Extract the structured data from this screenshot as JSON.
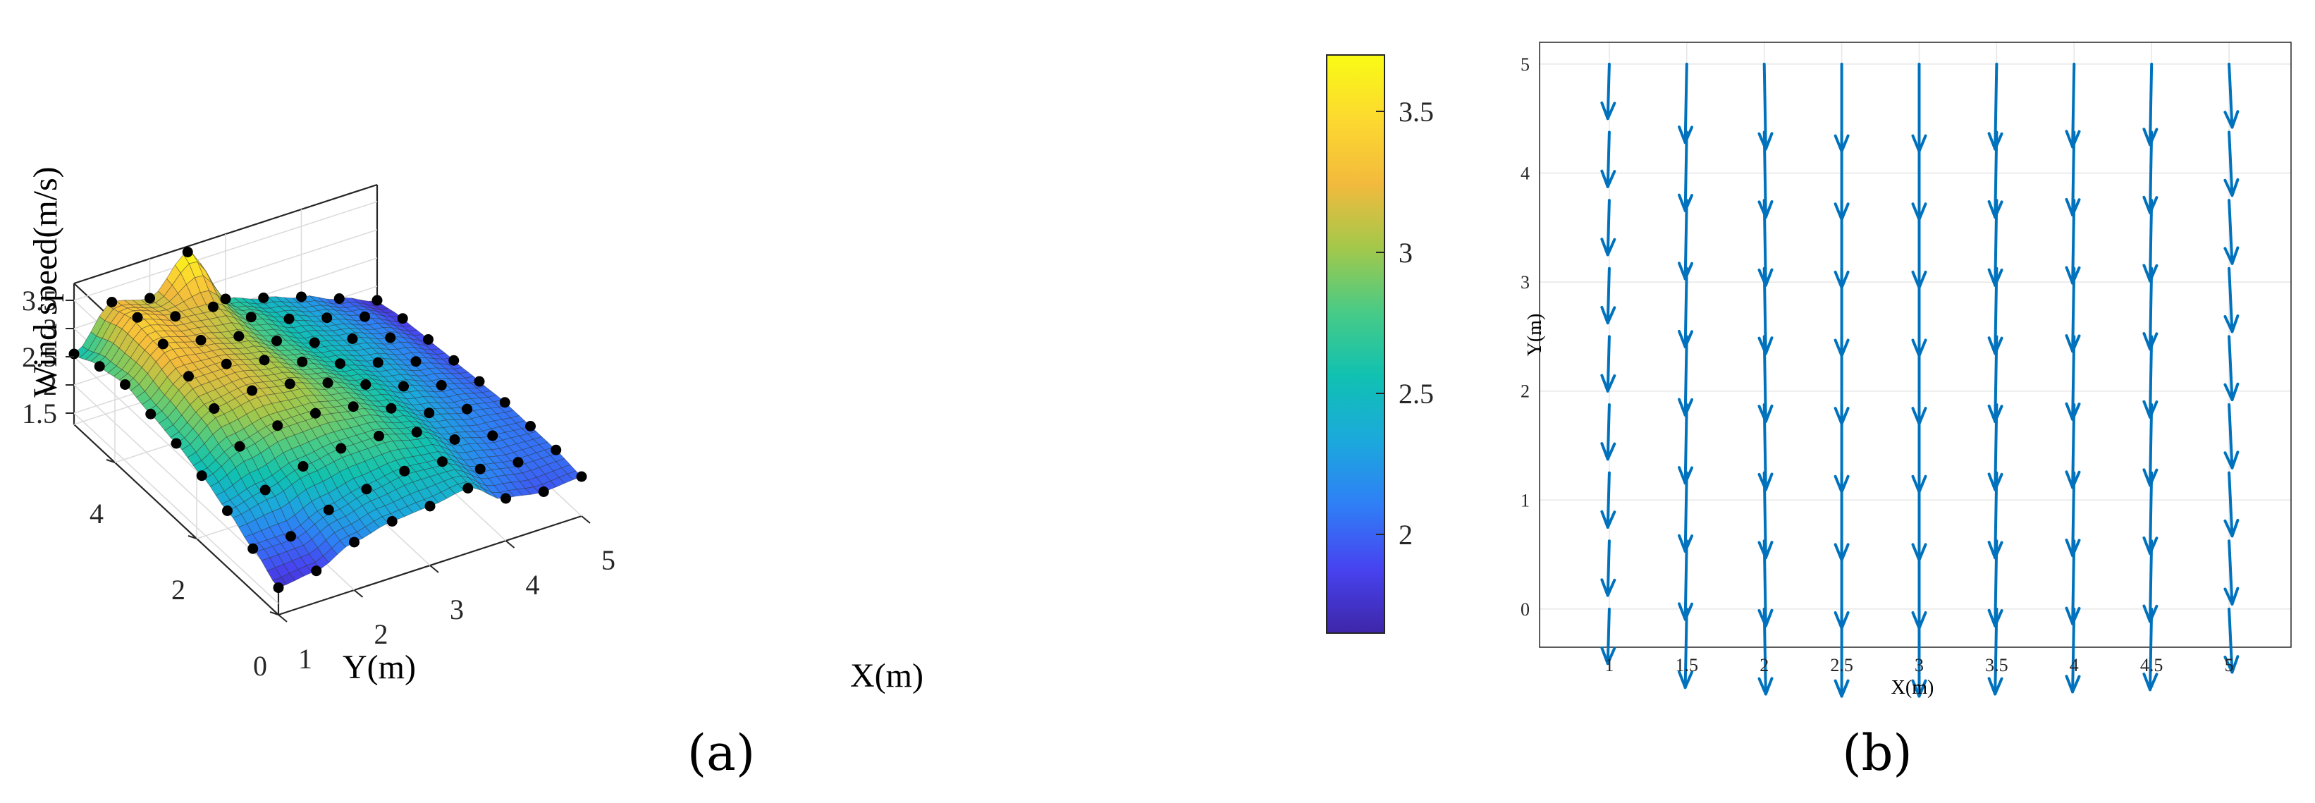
{
  "panels": {
    "a_label": "(a)",
    "b_label": "(b)"
  },
  "chart_data": [
    {
      "type": "surface3d",
      "zlabel": "Wind speed(m/s)",
      "xlabel": "X(m)",
      "ylabel": "Y(m)",
      "x_ticks": [
        "1",
        "2",
        "3",
        "4",
        "5"
      ],
      "y_ticks": [
        "0",
        "2",
        "4"
      ],
      "z_ticks": [
        "1.5",
        "2",
        "2.5",
        "3",
        "3.5"
      ],
      "xlim": [
        1,
        5
      ],
      "ylim": [
        0,
        5
      ],
      "zlim": [
        1.3,
        3.8
      ],
      "colorbar_ticks": [
        "2",
        "2.5",
        "3",
        "3.5"
      ],
      "colorbar_range": [
        1.65,
        3.7
      ],
      "colormap": [
        "#3e26a8",
        "#4743f0",
        "#2f7ff6",
        "#1ba9dc",
        "#10c1b1",
        "#48cb86",
        "#a3c84a",
        "#f3ba3d",
        "#fcd92f",
        "#f9fb15"
      ],
      "grid": true,
      "x": [
        1,
        1.5,
        2,
        2.5,
        3,
        3.5,
        4,
        4.5,
        5
      ],
      "y": [
        0,
        0.625,
        1.25,
        1.875,
        2.5,
        3.125,
        3.75,
        4.375,
        5
      ],
      "z": [
        [
          1.78,
          1.86,
          2.15,
          2.3,
          2.35,
          2.45,
          2.05,
          1.95,
          2.0
        ],
        [
          2.05,
          2.05,
          2.3,
          2.45,
          2.55,
          2.5,
          2.15,
          2.05,
          2.05
        ],
        [
          2.3,
          2.45,
          2.65,
          2.75,
          2.75,
          2.6,
          2.25,
          2.1,
          2.05
        ],
        [
          2.5,
          2.8,
          2.95,
          2.95,
          2.85,
          2.6,
          2.3,
          2.15,
          2.05
        ],
        [
          2.65,
          3.05,
          3.15,
          3.05,
          2.85,
          2.6,
          2.35,
          2.15,
          2.0
        ],
        [
          2.75,
          3.2,
          3.2,
          3.05,
          2.8,
          2.55,
          2.35,
          2.15,
          1.95
        ],
        [
          2.85,
          3.35,
          3.2,
          3.05,
          2.75,
          2.5,
          2.35,
          2.15,
          1.9
        ],
        [
          2.75,
          3.4,
          3.2,
          3.15,
          2.75,
          2.5,
          2.3,
          2.1,
          1.85
        ],
        [
          2.55,
          3.25,
          3.1,
          3.7,
          2.65,
          2.45,
          2.25,
          2.0,
          1.75
        ]
      ]
    },
    {
      "type": "quiver",
      "xlabel": "X(m)",
      "ylabel": "Y(m)",
      "x_ticks": [
        "1",
        "1.5",
        "2",
        "2.5",
        "3",
        "3.5",
        "4",
        "4.5",
        "5"
      ],
      "y_ticks": [
        "0",
        "1",
        "2",
        "3",
        "4",
        "5"
      ],
      "xlim": [
        0.55,
        5.4
      ],
      "ylim": [
        -0.35,
        5.2
      ],
      "grid": true,
      "color": "#0072bd",
      "x": [
        1,
        1.5,
        2,
        2.5,
        3,
        3.5,
        4,
        4.5,
        5
      ],
      "y": [
        0,
        0.625,
        1.25,
        1.875,
        2.5,
        3.125,
        3.75,
        4.375,
        5
      ],
      "u": [
        -0.01,
        -0.01,
        0.01,
        0.0,
        0.0,
        -0.01,
        -0.01,
        -0.01,
        0.02
      ],
      "v": [
        -0.5,
        -0.72,
        -0.78,
        -0.8,
        -0.8,
        -0.78,
        -0.76,
        -0.74,
        -0.58
      ]
    }
  ]
}
